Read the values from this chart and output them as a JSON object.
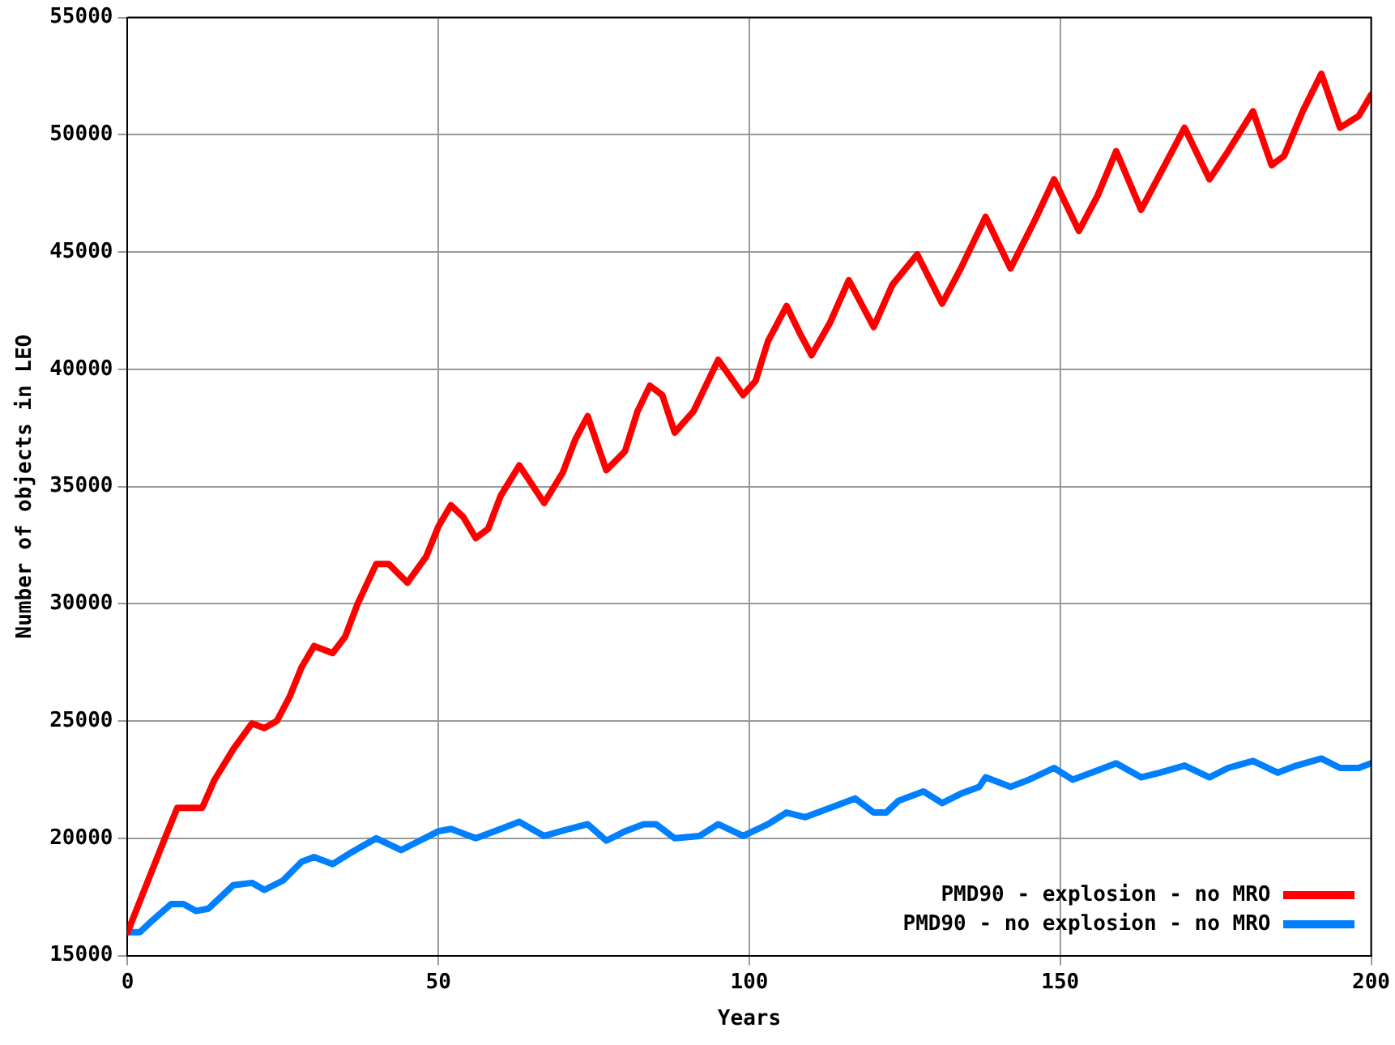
{
  "chart_data": {
    "type": "line",
    "xlabel": "Years",
    "ylabel": "Number of objects in LEO",
    "xlim": [
      0,
      200
    ],
    "xticks": [
      0,
      50,
      100,
      150,
      200
    ],
    "ylim": [
      15000,
      55000
    ],
    "yticks": [
      15000,
      20000,
      25000,
      30000,
      35000,
      40000,
      45000,
      50000,
      55000
    ],
    "grid": true,
    "legend": "bottom right",
    "marker": "none",
    "line_style": "solid",
    "series": [
      {
        "name": "PMD90 - explosion - no MRO",
        "color": "#ff0000",
        "x": [
          0,
          3,
          6,
          8,
          12,
          14,
          17,
          20,
          22,
          24,
          26,
          28,
          30,
          33,
          35,
          37,
          40,
          42,
          45,
          48,
          50,
          52,
          54,
          56,
          58,
          60,
          63,
          67,
          70,
          72,
          74,
          77,
          80,
          82,
          84,
          86,
          88,
          91,
          95,
          99,
          101,
          103,
          106,
          108,
          110,
          113,
          116,
          120,
          123,
          127,
          131,
          134,
          138,
          142,
          146,
          149,
          153,
          156,
          159,
          163,
          167,
          170,
          174,
          177,
          181,
          184,
          186,
          189,
          192,
          195,
          198,
          200
        ],
        "values": [
          16000,
          18000,
          20000,
          21300,
          21300,
          22500,
          23800,
          24900,
          24700,
          25000,
          26000,
          27300,
          28200,
          27900,
          28600,
          30000,
          31700,
          31700,
          30900,
          32000,
          33300,
          34200,
          33700,
          32800,
          33200,
          34600,
          35900,
          34300,
          35600,
          37000,
          38000,
          35700,
          36500,
          38200,
          39300,
          38900,
          37300,
          38200,
          40400,
          38900,
          39500,
          41200,
          42700,
          41600,
          40600,
          42000,
          43800,
          41800,
          43600,
          44900,
          42800,
          44300,
          46500,
          44300,
          46400,
          48100,
          45900,
          47400,
          49300,
          46800,
          48800,
          50300,
          48100,
          49300,
          51000,
          48700,
          49100,
          51000,
          52600,
          50300,
          50800,
          51700
        ]
      },
      {
        "name": "PMD90 - no explosion - no MRO",
        "color": "#0080ff",
        "x": [
          0,
          2,
          4,
          7,
          9,
          11,
          13,
          15,
          17,
          20,
          22,
          25,
          28,
          30,
          33,
          36,
          40,
          44,
          47,
          50,
          52,
          56,
          59,
          63,
          67,
          71,
          74,
          77,
          80,
          83,
          85,
          88,
          92,
          95,
          99,
          103,
          106,
          109,
          113,
          117,
          120,
          122,
          124,
          128,
          131,
          134,
          137,
          138,
          142,
          145,
          149,
          152,
          156,
          159,
          163,
          166,
          170,
          174,
          177,
          181,
          185,
          188,
          192,
          195,
          198,
          200
        ],
        "values": [
          16000,
          16000,
          16500,
          17200,
          17200,
          16900,
          17000,
          17500,
          18000,
          18100,
          17800,
          18200,
          19000,
          19200,
          18900,
          19400,
          20000,
          19500,
          19900,
          20300,
          20400,
          20000,
          20300,
          20700,
          20100,
          20400,
          20600,
          19900,
          20300,
          20600,
          20600,
          20000,
          20100,
          20600,
          20100,
          20600,
          21100,
          20900,
          21300,
          21700,
          21100,
          21100,
          21600,
          22000,
          21500,
          21900,
          22200,
          22600,
          22200,
          22500,
          23000,
          22500,
          22900,
          23200,
          22600,
          22800,
          23100,
          22600,
          23000,
          23300,
          22800,
          23100,
          23400,
          23000,
          23000,
          23200
        ]
      }
    ]
  }
}
